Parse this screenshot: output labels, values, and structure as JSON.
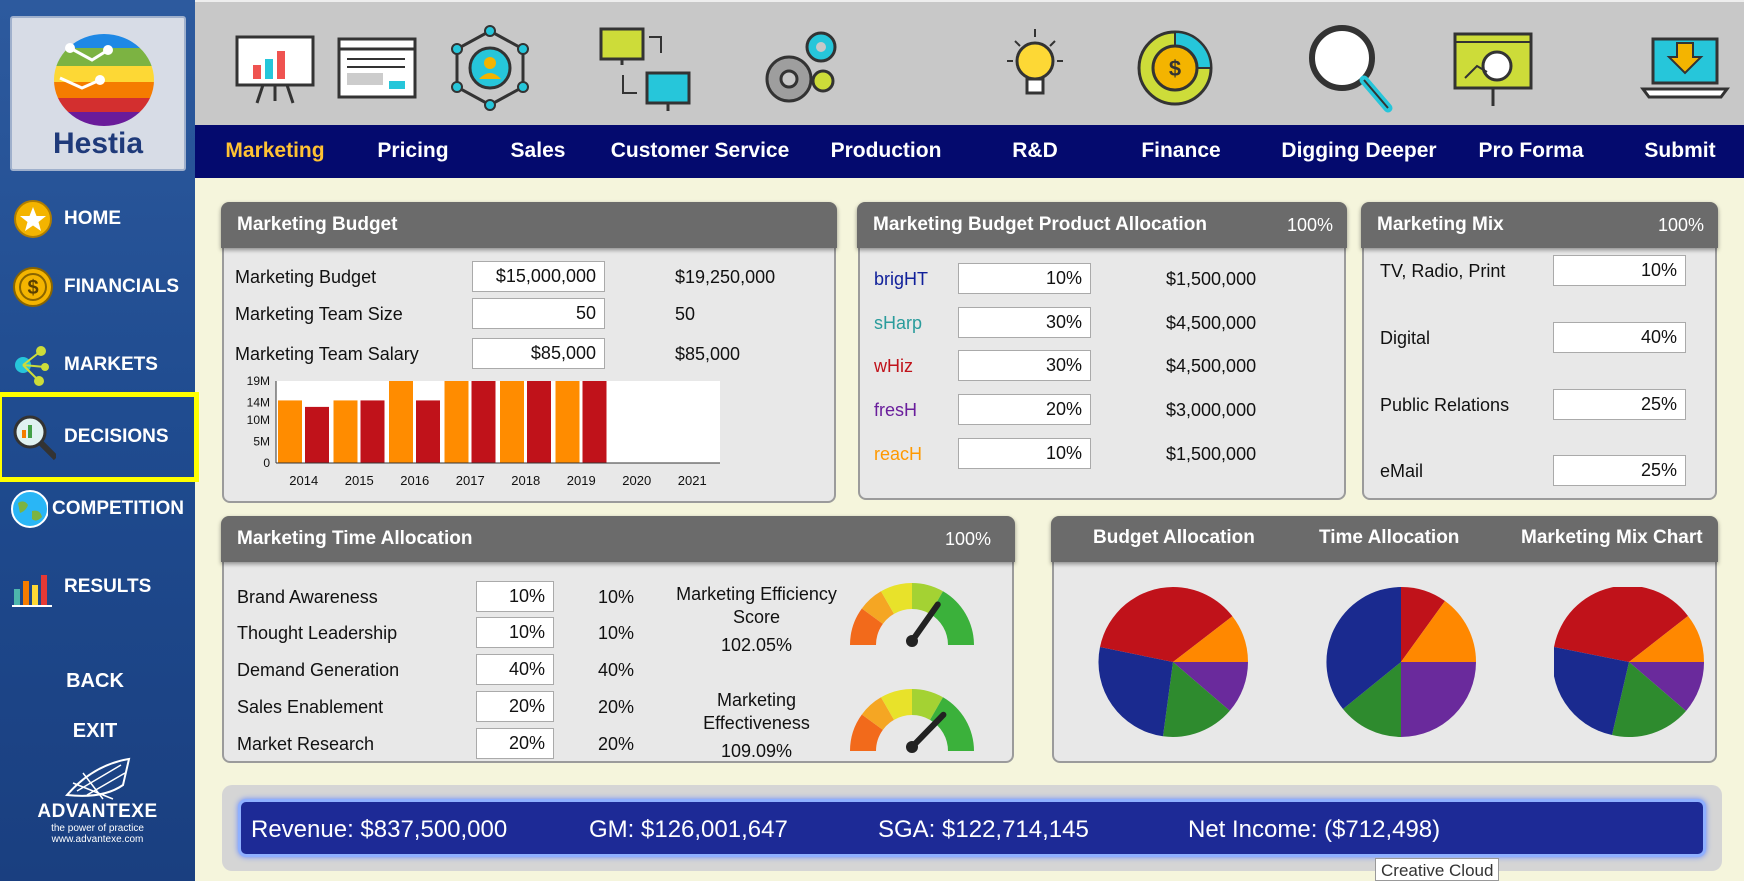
{
  "sidebar": {
    "brand": "Hestia",
    "items": [
      {
        "label": "HOME",
        "icon": "star-icon"
      },
      {
        "label": "FINANCIALS",
        "icon": "dollar-coin-icon"
      },
      {
        "label": "MARKETS",
        "icon": "network-dots-icon"
      },
      {
        "label": "DECISIONS",
        "icon": "magnifier-chart-icon"
      },
      {
        "label": "COMPETITION",
        "icon": "globe-icon"
      },
      {
        "label": "RESULTS",
        "icon": "bar-chart-icon"
      }
    ],
    "back": "BACK",
    "exit": "EXIT",
    "company": "ADVANTEXE",
    "tagline": "the power of practice",
    "url": "www.advantexe.com"
  },
  "tabs": [
    "Marketing",
    "Pricing",
    "Sales",
    "Customer Service",
    "Production",
    "R&D",
    "Finance",
    "Digging Deeper",
    "Pro Forma",
    "Submit"
  ],
  "active_tab": "Marketing",
  "budget": {
    "title": "Marketing Budget",
    "rows": [
      {
        "label": "Marketing Budget",
        "input": "$15,000,000",
        "value": "$19,250,000"
      },
      {
        "label": "Marketing Team Size",
        "input": "50",
        "value": "50"
      },
      {
        "label": "Marketing Team Salary",
        "input": "$85,000",
        "value": "$85,000"
      }
    ]
  },
  "chart_data": {
    "type": "bar",
    "categories": [
      "2014",
      "2015",
      "2016",
      "2017",
      "2018",
      "2019",
      "2020",
      "2021"
    ],
    "series": [
      {
        "values": [
          14.5,
          14.5,
          19,
          19,
          19,
          19,
          null,
          null
        ]
      },
      {
        "values": [
          13,
          14.5,
          14.5,
          19,
          19,
          19,
          null,
          null
        ]
      }
    ],
    "yticks": [
      "0",
      "5M",
      "10M",
      "14M",
      "19M"
    ],
    "ylim": [
      0,
      19
    ],
    "colors": [
      "#ff8c00",
      "#c0121a"
    ]
  },
  "allocation": {
    "title": "Marketing Budget Product Allocation",
    "total": "100%",
    "rows": [
      {
        "name": "brigHT",
        "color": "#10209a",
        "pct": "10%",
        "amount": "$1,500,000"
      },
      {
        "name": "sHarp",
        "color": "#2a9c9c",
        "pct": "30%",
        "amount": "$4,500,000"
      },
      {
        "name": "wHiz",
        "color": "#c0121a",
        "pct": "30%",
        "amount": "$4,500,000"
      },
      {
        "name": "fresH",
        "color": "#6a1e9c",
        "pct": "20%",
        "amount": "$3,000,000"
      },
      {
        "name": "reacH",
        "color": "#ff9900",
        "pct": "10%",
        "amount": "$1,500,000"
      }
    ]
  },
  "mix": {
    "title": "Marketing Mix",
    "total": "100%",
    "rows": [
      {
        "label": "TV, Radio, Print",
        "pct": "10%"
      },
      {
        "label": "Digital",
        "pct": "40%"
      },
      {
        "label": "Public Relations",
        "pct": "25%"
      },
      {
        "label": "eMail",
        "pct": "25%"
      }
    ]
  },
  "time": {
    "title": "Marketing Time Allocation",
    "total": "100%",
    "rows": [
      {
        "label": "Brand Awareness",
        "input": "10%",
        "value": "10%"
      },
      {
        "label": "Thought Leadership",
        "input": "10%",
        "value": "10%"
      },
      {
        "label": "Demand Generation",
        "input": "40%",
        "value": "40%"
      },
      {
        "label": "Sales Enablement",
        "input": "20%",
        "value": "20%"
      },
      {
        "label": "Market Research",
        "input": "20%",
        "value": "20%"
      }
    ],
    "gauges": [
      {
        "label1": "Marketing Efficiency",
        "label2": "Score",
        "value": "102.05%",
        "level": 1.0205
      },
      {
        "label1": "Marketing",
        "label2": "Effectiveness",
        "value": "109.09%",
        "level": 1.0909
      }
    ]
  },
  "pies": {
    "headers": [
      "Budget Allocation",
      "Time Allocation",
      "Marketing Mix Chart"
    ]
  },
  "summary": {
    "revenue": "Revenue:  $837,500,000",
    "gm": "GM:  $126,001,647",
    "sga": "SGA: $122,714,145",
    "net": "Net Income:    ($712,498)"
  },
  "tooltip": "Creative Cloud"
}
